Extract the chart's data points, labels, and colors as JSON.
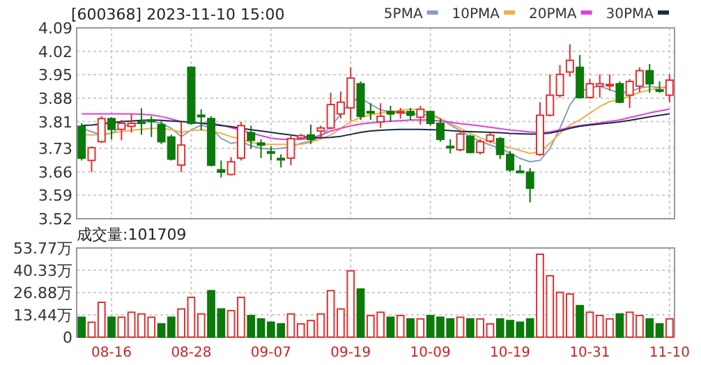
{
  "chart_data": [
    {
      "type": "candlestick",
      "title": "[600368] 2023-11-10 15:00",
      "categories": [
        null,
        null,
        null,
        null,
        null,
        null,
        null,
        null,
        null,
        null,
        null,
        null,
        null,
        null,
        null,
        null,
        null,
        null,
        null,
        null,
        null,
        null,
        null,
        null,
        null,
        null,
        null,
        null,
        null,
        null,
        null,
        null,
        null,
        null,
        null,
        null,
        null,
        null,
        null,
        null,
        null,
        null,
        null,
        null,
        null,
        null,
        null,
        null,
        null,
        null,
        null,
        null,
        null,
        null,
        null,
        null,
        null,
        null,
        null,
        null
      ],
      "ohlc": [
        [
          3.796,
          3.805,
          3.694,
          3.701
        ],
        [
          3.694,
          3.736,
          3.659,
          3.732
        ],
        [
          3.75,
          3.826,
          3.746,
          3.819
        ],
        [
          3.819,
          3.823,
          3.757,
          3.787
        ],
        [
          3.787,
          3.815,
          3.754,
          3.805
        ],
        [
          3.796,
          3.833,
          3.777,
          3.805
        ],
        [
          3.809,
          3.85,
          3.771,
          3.805
        ],
        [
          3.815,
          3.826,
          3.764,
          3.812
        ],
        [
          3.801,
          3.81,
          3.743,
          3.75
        ],
        [
          3.764,
          3.771,
          3.694,
          3.698
        ],
        [
          3.68,
          3.809,
          3.659,
          3.74
        ],
        [
          3.972,
          3.975,
          3.801,
          3.805
        ],
        [
          3.829,
          3.847,
          3.784,
          3.826
        ],
        [
          3.819,
          3.826,
          3.676,
          3.68
        ],
        [
          3.666,
          3.694,
          3.643,
          3.659
        ],
        [
          3.652,
          3.704,
          3.65,
          3.69
        ],
        [
          3.701,
          3.809,
          3.694,
          3.798
        ],
        [
          3.777,
          3.798,
          3.729,
          3.754
        ],
        [
          3.746,
          3.757,
          3.701,
          3.74
        ],
        [
          3.72,
          3.736,
          3.694,
          3.717
        ],
        [
          3.7,
          3.712,
          3.673,
          3.697
        ],
        [
          3.701,
          3.771,
          3.68,
          3.759
        ],
        [
          3.761,
          3.773,
          3.757,
          3.768
        ],
        [
          3.77,
          3.801,
          3.743,
          3.757
        ],
        [
          3.782,
          3.798,
          3.764,
          3.791
        ],
        [
          3.791,
          3.896,
          3.787,
          3.861
        ],
        [
          3.833,
          3.9,
          3.819,
          3.868
        ],
        [
          3.851,
          3.972,
          3.812,
          3.94
        ],
        [
          3.923,
          3.93,
          3.815,
          3.826
        ],
        [
          3.84,
          3.865,
          3.815,
          3.837
        ],
        [
          3.809,
          3.865,
          3.791,
          3.826
        ],
        [
          3.84,
          3.857,
          3.809,
          3.833
        ],
        [
          3.837,
          3.851,
          3.819,
          3.84
        ],
        [
          3.84,
          3.851,
          3.815,
          3.829
        ],
        [
          3.823,
          3.857,
          3.801,
          3.847
        ],
        [
          3.84,
          3.843,
          3.798,
          3.805
        ],
        [
          3.805,
          3.819,
          3.75,
          3.757
        ],
        [
          3.736,
          3.757,
          3.715,
          3.732
        ],
        [
          3.726,
          3.784,
          3.721,
          3.773
        ],
        [
          3.766,
          3.771,
          3.715,
          3.718
        ],
        [
          3.718,
          3.757,
          3.712,
          3.75
        ],
        [
          3.752,
          3.777,
          3.746,
          3.77
        ],
        [
          3.759,
          3.764,
          3.698,
          3.712
        ],
        [
          3.712,
          3.722,
          3.659,
          3.666
        ],
        [
          3.662,
          3.68,
          3.657,
          3.66
        ],
        [
          3.659,
          3.671,
          3.569,
          3.611
        ],
        [
          3.712,
          3.868,
          3.708,
          3.829
        ],
        [
          3.829,
          3.951,
          3.826,
          3.889
        ],
        [
          3.888,
          3.979,
          3.882,
          3.951
        ],
        [
          3.958,
          4.041,
          3.944,
          3.993
        ],
        [
          3.972,
          4.009,
          3.879,
          3.882
        ],
        [
          3.882,
          3.937,
          3.879,
          3.923
        ],
        [
          3.916,
          3.951,
          3.882,
          3.923
        ],
        [
          3.919,
          3.951,
          3.902,
          3.921
        ],
        [
          3.923,
          3.93,
          3.865,
          3.868
        ],
        [
          3.889,
          3.937,
          3.851,
          3.93
        ],
        [
          3.916,
          3.972,
          3.898,
          3.962
        ],
        [
          3.962,
          3.982,
          3.896,
          3.923
        ],
        [
          3.905,
          3.93,
          3.896,
          3.902
        ],
        [
          3.889,
          3.951,
          3.868,
          3.934
        ]
      ],
      "series": [
        {
          "name": "5PMA",
          "type": "line",
          "color": "#8c9cc0",
          "values": [
            3.791,
            3.78,
            3.77,
            3.775,
            3.795,
            3.802,
            3.808,
            3.81,
            3.805,
            3.79,
            3.765,
            3.785,
            3.8,
            3.79,
            3.76,
            3.745,
            3.75,
            3.738,
            3.73,
            3.728,
            3.73,
            3.735,
            3.745,
            3.752,
            3.765,
            3.795,
            3.833,
            3.87,
            3.88,
            3.862,
            3.845,
            3.84,
            3.836,
            3.834,
            3.832,
            3.829,
            3.818,
            3.8,
            3.783,
            3.765,
            3.752,
            3.74,
            3.73,
            3.716,
            3.7,
            3.69,
            3.694,
            3.73,
            3.79,
            3.86,
            3.9,
            3.91,
            3.916,
            3.905,
            3.895,
            3.9,
            3.91,
            3.915,
            3.912,
            3.91
          ]
        },
        {
          "name": "10PMA",
          "type": "line",
          "color": "#f0b048",
          "values": [
            3.771,
            3.77,
            3.772,
            3.776,
            3.78,
            3.784,
            3.787,
            3.79,
            3.79,
            3.786,
            3.778,
            3.783,
            3.785,
            3.782,
            3.775,
            3.765,
            3.757,
            3.748,
            3.743,
            3.742,
            3.742,
            3.742,
            3.742,
            3.748,
            3.758,
            3.77,
            3.79,
            3.81,
            3.822,
            3.83,
            3.836,
            3.84,
            3.844,
            3.847,
            3.845,
            3.835,
            3.82,
            3.805,
            3.79,
            3.775,
            3.762,
            3.75,
            3.74,
            3.732,
            3.724,
            3.715,
            3.72,
            3.745,
            3.775,
            3.8,
            3.815,
            3.835,
            3.855,
            3.87,
            3.875,
            3.886,
            3.897,
            3.905,
            3.911,
            3.916
          ]
        },
        {
          "name": "20PMA",
          "type": "line",
          "color": "#e040d8",
          "values": [
            3.833,
            3.833,
            3.833,
            3.833,
            3.833,
            3.833,
            3.832,
            3.83,
            3.825,
            3.818,
            3.81,
            null,
            3.806,
            3.805,
            3.8,
            3.792,
            3.784,
            3.776,
            3.768,
            3.761,
            3.757,
            3.757,
            3.757,
            3.76,
            3.77,
            3.782,
            3.79,
            3.797,
            3.803,
            3.806,
            3.809,
            3.811,
            3.813,
            3.815,
            3.815,
            3.815,
            3.812,
            3.808,
            3.804,
            3.801,
            3.797,
            3.793,
            3.789,
            3.785,
            3.782,
            3.779,
            3.777,
            3.779,
            3.786,
            3.793,
            3.798,
            3.802,
            3.806,
            3.811,
            3.815,
            3.822,
            3.829,
            3.836,
            3.842,
            3.847
          ]
        },
        {
          "name": "30PMA",
          "type": "line",
          "color": "#1c2c44",
          "values": [
            3.798,
            3.8,
            3.803,
            3.806,
            3.81,
            3.812,
            3.814,
            3.815,
            3.814,
            3.812,
            3.81,
            3.808,
            3.805,
            3.802,
            3.798,
            3.795,
            3.79,
            3.786,
            3.782,
            3.778,
            3.774,
            3.77,
            3.766,
            3.762,
            3.762,
            3.763,
            3.766,
            3.772,
            3.778,
            3.782,
            3.784,
            3.786,
            3.787,
            3.787,
            3.787,
            3.786,
            3.785,
            3.783,
            3.781,
            3.78,
            3.779,
            3.778,
            3.777,
            3.775,
            3.774,
            3.773,
            3.773,
            3.776,
            3.782,
            3.79,
            3.796,
            3.8,
            3.803,
            3.806,
            3.809,
            3.814,
            3.819,
            3.824,
            3.829,
            3.833
          ]
        }
      ],
      "ylim": [
        3.52,
        4.09
      ],
      "yticks": [
        3.52,
        3.59,
        3.66,
        3.73,
        3.81,
        3.88,
        3.95,
        4.02,
        4.09
      ],
      "grid": true,
      "legend": "top right",
      "tick_labels": "y"
    },
    {
      "type": "bar",
      "title": "成交量:101709",
      "categories": [
        null,
        null,
        null,
        "08-16",
        null,
        null,
        null,
        null,
        null,
        null,
        null,
        "08-28",
        null,
        null,
        null,
        null,
        null,
        null,
        null,
        "09-07",
        null,
        null,
        null,
        null,
        null,
        null,
        null,
        "09-19",
        null,
        null,
        null,
        null,
        null,
        null,
        null,
        "10-09",
        null,
        null,
        null,
        null,
        null,
        null,
        null,
        "10-19",
        null,
        null,
        null,
        null,
        null,
        null,
        null,
        "10-31",
        null,
        null,
        null,
        null,
        null,
        null,
        null,
        "11-10"
      ],
      "values": [
        12,
        9,
        21,
        12,
        12,
        15,
        14,
        12,
        8,
        12,
        17,
        24,
        14,
        28,
        17,
        16,
        24,
        13,
        11,
        9,
        8,
        14,
        8,
        10,
        14,
        28,
        17,
        40,
        29,
        13,
        15,
        12,
        13,
        11,
        11,
        13,
        12,
        11,
        12,
        11,
        11,
        8,
        11,
        10,
        9,
        11,
        50,
        37,
        27,
        26,
        19,
        15,
        13,
        11,
        14,
        15,
        13,
        11,
        8,
        11
      ],
      "colors": [
        "#0a7a0a",
        "#e03030",
        "#e03030",
        "#0a7a0a",
        "#e03030",
        "#e03030",
        "#e03030",
        "#e03030",
        "#0a7a0a",
        "#0a7a0a",
        "#e03030",
        "#e03030",
        "#e03030",
        "#0a7a0a",
        "#0a7a0a",
        "#e03030",
        "#e03030",
        "#0a7a0a",
        "#0a7a0a",
        "#0a7a0a",
        "#0a7a0a",
        "#e03030",
        "#e03030",
        "#e03030",
        "#e03030",
        "#e03030",
        "#e03030",
        "#e03030",
        "#0a7a0a",
        "#e03030",
        "#e03030",
        "#0a7a0a",
        "#e03030",
        "#0a7a0a",
        "#e03030",
        "#0a7a0a",
        "#0a7a0a",
        "#0a7a0a",
        "#e03030",
        "#0a7a0a",
        "#e03030",
        "#e03030",
        "#0a7a0a",
        "#0a7a0a",
        "#0a7a0a",
        "#0a7a0a",
        "#e03030",
        "#e03030",
        "#e03030",
        "#e03030",
        "#0a7a0a",
        "#e03030",
        "#e03030",
        "#e03030",
        "#0a7a0a",
        "#e03030",
        "#e03030",
        "#0a7a0a",
        "#0a7a0a",
        "#e03030"
      ],
      "ylim": [
        0,
        53.77
      ],
      "yticks": [
        0,
        {
          "value": 13.44,
          "label": "13.44万"
        },
        {
          "value": 26.88,
          "label": "26.88万"
        },
        {
          "value": 40.33,
          "label": "40.33万"
        },
        {
          "value": 53.77,
          "label": "53.77万"
        }
      ],
      "grid": true
    }
  ]
}
